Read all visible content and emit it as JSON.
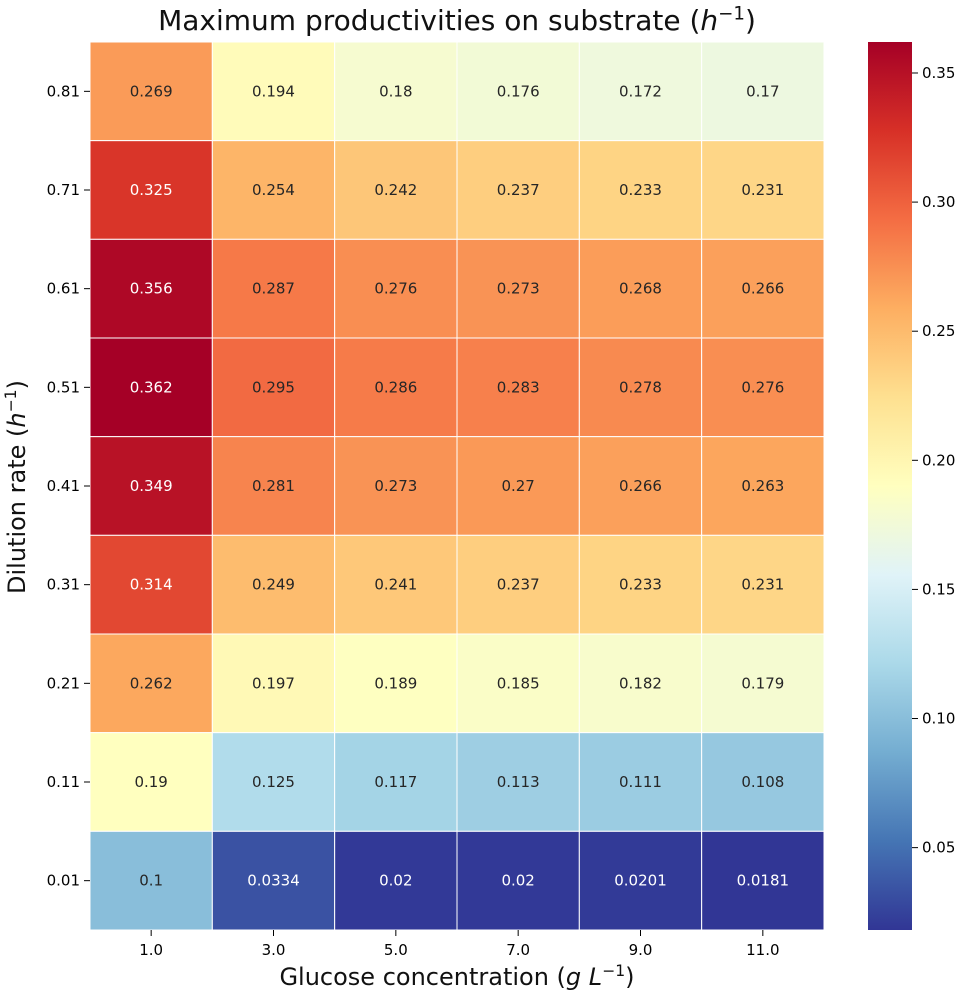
{
  "chart_data": {
    "type": "heatmap",
    "title_text": "Maximum productivities on substrate",
    "title_unit": "h",
    "title_exp": "−1",
    "xlabel_text": "Glucose concentration",
    "xlabel_unit_g": "g",
    "xlabel_unit_L": "L",
    "xlabel_exp": "−1",
    "ylabel_text": "Dilution rate",
    "ylabel_unit": "h",
    "ylabel_exp": "−1",
    "x_categories": [
      "1.0",
      "3.0",
      "5.0",
      "7.0",
      "9.0",
      "11.0"
    ],
    "y_categories": [
      "0.81",
      "0.71",
      "0.61",
      "0.51",
      "0.41",
      "0.31",
      "0.21",
      "0.11",
      "0.01"
    ],
    "values": [
      [
        "0.269",
        "0.194",
        "0.18",
        "0.176",
        "0.172",
        "0.17"
      ],
      [
        "0.325",
        "0.254",
        "0.242",
        "0.237",
        "0.233",
        "0.231"
      ],
      [
        "0.356",
        "0.287",
        "0.276",
        "0.273",
        "0.268",
        "0.266"
      ],
      [
        "0.362",
        "0.295",
        "0.286",
        "0.283",
        "0.278",
        "0.276"
      ],
      [
        "0.349",
        "0.281",
        "0.273",
        "0.27",
        "0.266",
        "0.263"
      ],
      [
        "0.314",
        "0.249",
        "0.241",
        "0.237",
        "0.233",
        "0.231"
      ],
      [
        "0.262",
        "0.197",
        "0.189",
        "0.185",
        "0.182",
        "0.179"
      ],
      [
        "0.19",
        "0.125",
        "0.117",
        "0.113",
        "0.111",
        "0.108"
      ],
      [
        "0.1",
        "0.0334",
        "0.02",
        "0.02",
        "0.0201",
        "0.0181"
      ]
    ],
    "colorbar": {
      "colormap": "RdYlBu_r",
      "vmin": 0.0181,
      "vmax": 0.362,
      "ticks": [
        "0.05",
        "0.10",
        "0.15",
        "0.20",
        "0.25",
        "0.30",
        "0.35"
      ]
    }
  }
}
